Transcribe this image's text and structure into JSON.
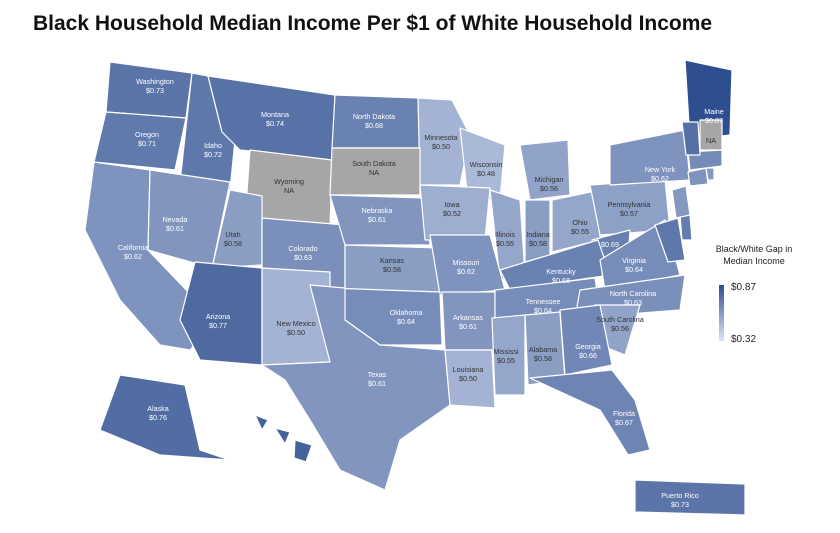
{
  "title": "Black Household Median Income Per $1 of White Household Income",
  "legend": {
    "title": "Black/White Gap in Median Income",
    "max_label": "$0.87",
    "min_label": "$0.32",
    "max": 0.87,
    "min": 0.32,
    "color_high": "#2e4f8f",
    "color_low": "#dde4f4",
    "na_color": "#a6a6a6"
  },
  "states": [
    {
      "id": "WA",
      "name": "Washington",
      "value": 0.73,
      "value_label": "$0.73"
    },
    {
      "id": "OR",
      "name": "Oregon",
      "value": 0.71,
      "value_label": "$0.71"
    },
    {
      "id": "ID",
      "name": "Idaho",
      "value": 0.72,
      "value_label": "$0.72"
    },
    {
      "id": "MT",
      "name": "Montana",
      "value": 0.74,
      "value_label": "$0.74"
    },
    {
      "id": "ND",
      "name": "North Dakota",
      "value": 0.68,
      "value_label": "$0.68"
    },
    {
      "id": "MN",
      "name": "Minnesota",
      "value": 0.5,
      "value_label": "$0.50"
    },
    {
      "id": "WI",
      "name": "Wisconsin",
      "value": 0.48,
      "value_label": "$0.48"
    },
    {
      "id": "MI",
      "name": "Michigan",
      "value": 0.56,
      "value_label": "$0.56"
    },
    {
      "id": "WY",
      "name": "Wyoming",
      "value": null,
      "value_label": "NA"
    },
    {
      "id": "SD",
      "name": "South Dakota",
      "value": null,
      "value_label": "NA"
    },
    {
      "id": "CA",
      "name": "California",
      "value": 0.62,
      "value_label": "$0.62"
    },
    {
      "id": "NV",
      "name": "Nevada",
      "value": 0.61,
      "value_label": "$0.61"
    },
    {
      "id": "UT",
      "name": "Utah",
      "value": 0.58,
      "value_label": "$0.58"
    },
    {
      "id": "CO",
      "name": "Colorado",
      "value": 0.63,
      "value_label": "$0.63"
    },
    {
      "id": "NE",
      "name": "Nebraska",
      "value": 0.61,
      "value_label": "$0.61"
    },
    {
      "id": "IA",
      "name": "Iowa",
      "value": 0.52,
      "value_label": "$0.52"
    },
    {
      "id": "IL",
      "name": "Illinois",
      "value": 0.55,
      "value_label": "$0.55"
    },
    {
      "id": "IN",
      "name": "Indiana",
      "value": 0.58,
      "value_label": "$0.58"
    },
    {
      "id": "OH",
      "name": "Ohio",
      "value": 0.55,
      "value_label": "$0.55"
    },
    {
      "id": "PA",
      "name": "Pennsylvania",
      "value": 0.57,
      "value_label": "$0.57"
    },
    {
      "id": "NY",
      "name": "New York",
      "value": 0.62,
      "value_label": "$0.62"
    },
    {
      "id": "ME",
      "name": "Maine",
      "value": 0.87,
      "value_label": "$0.87"
    },
    {
      "id": "NH",
      "name": "",
      "value": null,
      "value_label": "NA"
    },
    {
      "id": "WV",
      "name": "",
      "value": 0.69,
      "value_label": "$0.69"
    },
    {
      "id": "KS",
      "name": "Kansas",
      "value": 0.58,
      "value_label": "$0.58"
    },
    {
      "id": "MO",
      "name": "Missouri",
      "value": 0.62,
      "value_label": "$0.62"
    },
    {
      "id": "KY",
      "name": "Kentucky",
      "value": 0.68,
      "value_label": "$0.68"
    },
    {
      "id": "VA",
      "name": "Virginia",
      "value": 0.64,
      "value_label": "$0.64"
    },
    {
      "id": "AZ",
      "name": "Arizona",
      "value": 0.77,
      "value_label": "$0.77"
    },
    {
      "id": "NM",
      "name": "New Mexico",
      "value": 0.5,
      "value_label": "$0.50"
    },
    {
      "id": "OK",
      "name": "Oklahoma",
      "value": 0.64,
      "value_label": "$0.64"
    },
    {
      "id": "AR",
      "name": "Arkansas",
      "value": 0.61,
      "value_label": "$0.61"
    },
    {
      "id": "TN",
      "name": "Tennessee",
      "value": 0.64,
      "value_label": "$0.64"
    },
    {
      "id": "NC",
      "name": "North Carolina",
      "value": 0.63,
      "value_label": "$0.63"
    },
    {
      "id": "SC",
      "name": "South Carolina",
      "value": 0.56,
      "value_label": "$0.56"
    },
    {
      "id": "TX",
      "name": "Texas",
      "value": 0.61,
      "value_label": "$0.61"
    },
    {
      "id": "LA",
      "name": "Louisiana",
      "value": 0.5,
      "value_label": "$0.50"
    },
    {
      "id": "MS",
      "name": "Mississi",
      "value": 0.55,
      "value_label": "$0.55"
    },
    {
      "id": "AL",
      "name": "Alabama",
      "value": 0.58,
      "value_label": "$0.58"
    },
    {
      "id": "GA",
      "name": "Georgia",
      "value": 0.66,
      "value_label": "$0.66"
    },
    {
      "id": "FL",
      "name": "Florida",
      "value": 0.67,
      "value_label": "$0.67"
    },
    {
      "id": "AK",
      "name": "Alaska",
      "value": 0.76,
      "value_label": "$0.76"
    },
    {
      "id": "PR",
      "name": "Puerto Rico",
      "value": 0.73,
      "value_label": "$0.73"
    },
    {
      "id": "MD",
      "name": "",
      "value": 0.72,
      "value_label": ""
    },
    {
      "id": "DE",
      "name": "",
      "value": 0.7,
      "value_label": ""
    },
    {
      "id": "NJ",
      "name": "",
      "value": 0.6,
      "value_label": ""
    },
    {
      "id": "CT",
      "name": "",
      "value": 0.62,
      "value_label": ""
    },
    {
      "id": "RI",
      "name": "",
      "value": 0.6,
      "value_label": ""
    },
    {
      "id": "MA",
      "name": "",
      "value": 0.65,
      "value_label": ""
    },
    {
      "id": "VT",
      "name": "",
      "value": 0.75,
      "value_label": ""
    },
    {
      "id": "HI",
      "name": "",
      "value": 0.8,
      "value_label": ""
    }
  ]
}
